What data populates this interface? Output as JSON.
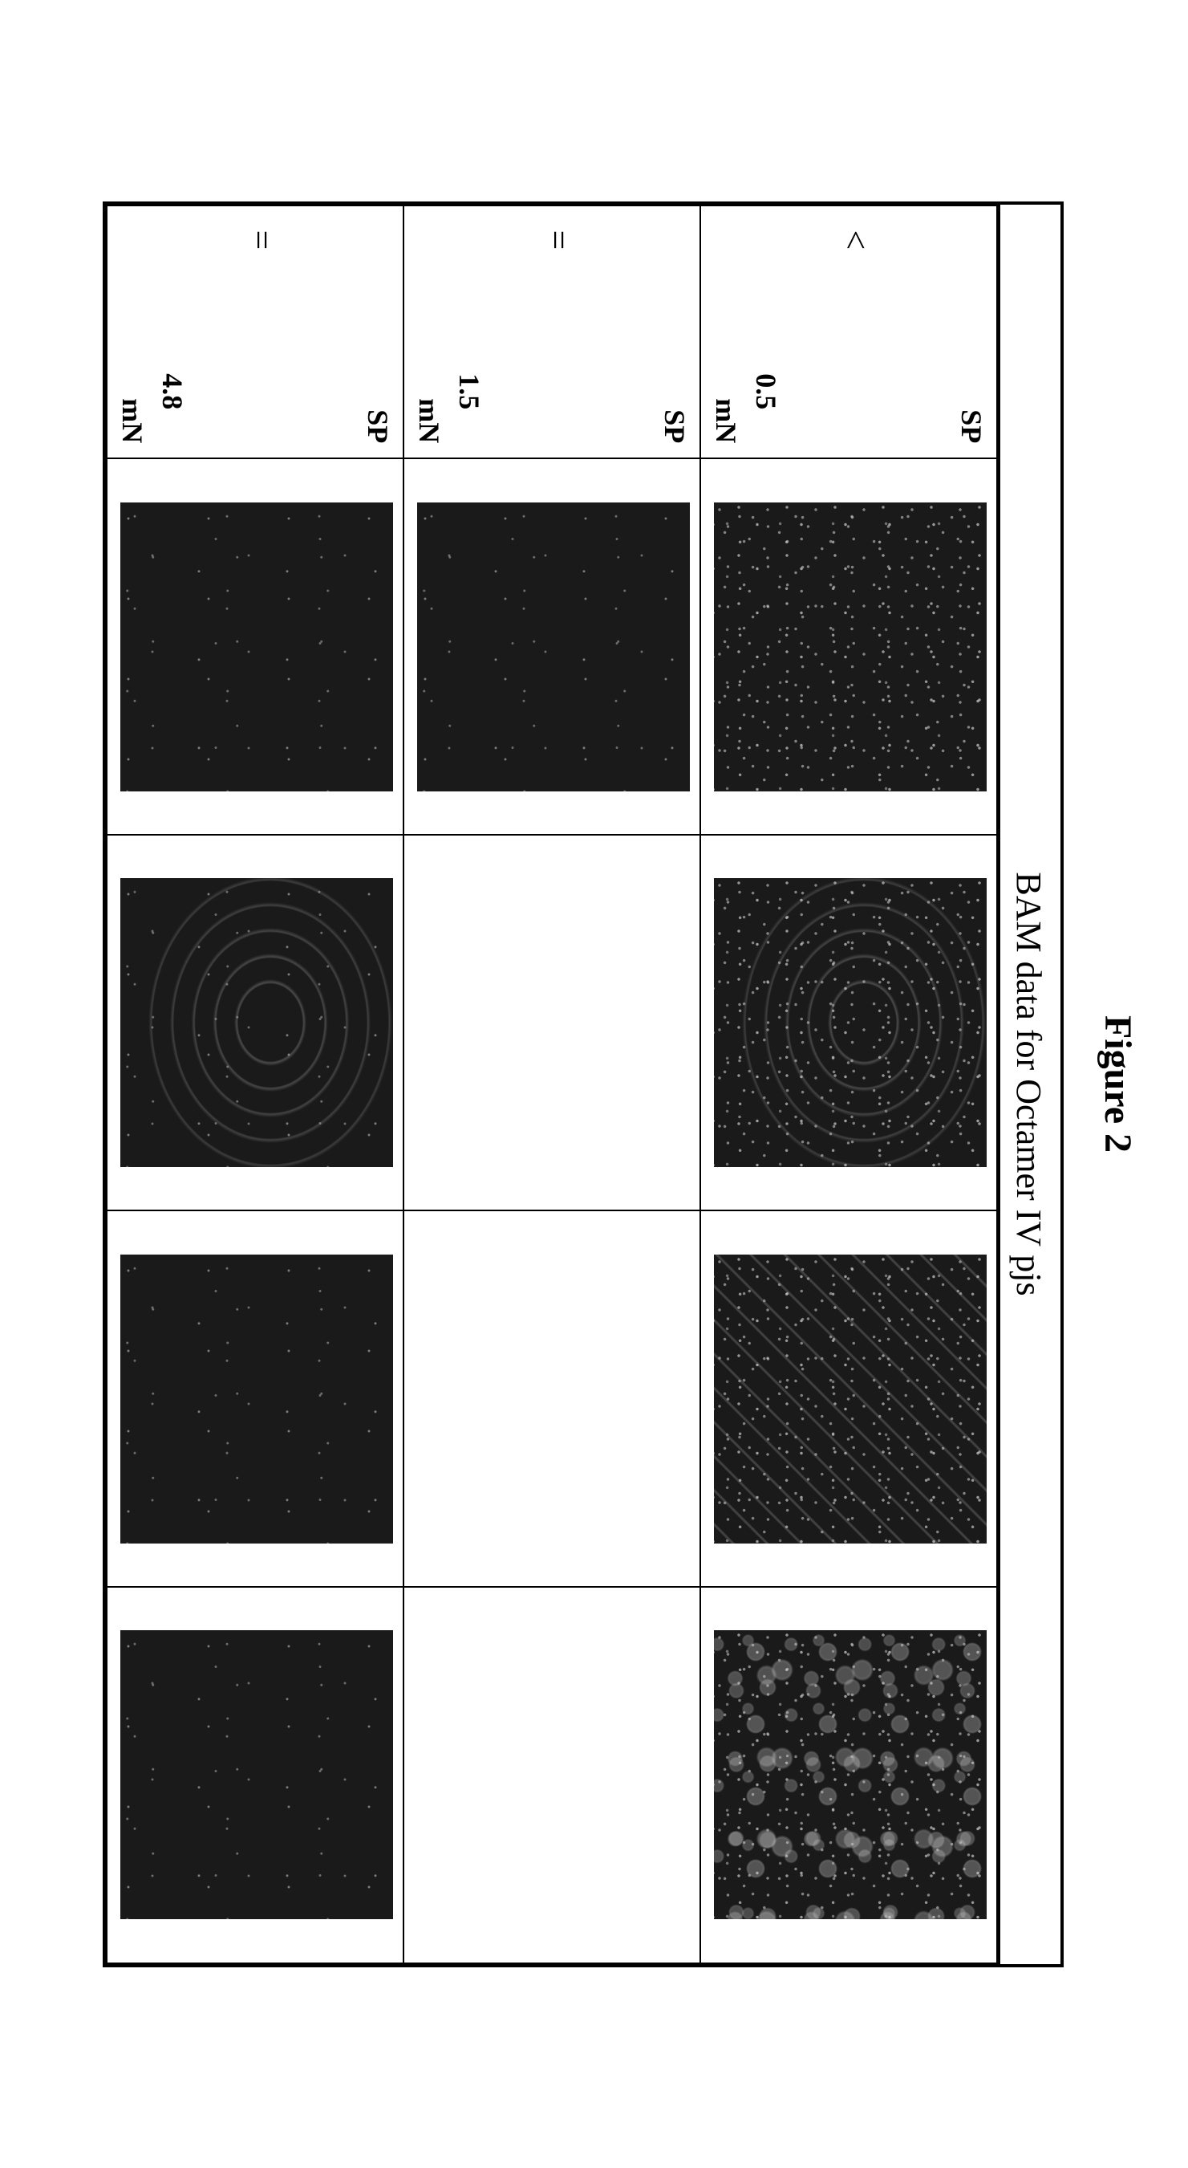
{
  "figure": {
    "title": "Figure 2",
    "subtitle": "BAM data for Octamer IV pjs",
    "colors": {
      "border": "#000000",
      "background": "#ffffff",
      "image_bg": "#1a1a1a",
      "speckle": "#c8c8c8"
    },
    "label_strings": {
      "sp": "SP",
      "unit": "mN"
    },
    "rows": [
      {
        "sp_operator": "<",
        "sp_value": "0.5",
        "cells": [
          {
            "has_image": true,
            "texture": "noise"
          },
          {
            "has_image": true,
            "texture": "arc"
          },
          {
            "has_image": true,
            "texture": "diag"
          },
          {
            "has_image": true,
            "texture": "bubble"
          }
        ]
      },
      {
        "sp_operator": "=",
        "sp_value": "1.5",
        "cells": [
          {
            "has_image": true,
            "texture": "sparse"
          },
          {
            "has_image": false,
            "texture": ""
          },
          {
            "has_image": false,
            "texture": ""
          },
          {
            "has_image": false,
            "texture": ""
          }
        ]
      },
      {
        "sp_operator": "=",
        "sp_value": "4.8",
        "cells": [
          {
            "has_image": true,
            "texture": "sparse"
          },
          {
            "has_image": true,
            "texture": "arc-sparse"
          },
          {
            "has_image": true,
            "texture": "sparse"
          },
          {
            "has_image": true,
            "texture": "very-sparse"
          }
        ]
      }
    ]
  }
}
